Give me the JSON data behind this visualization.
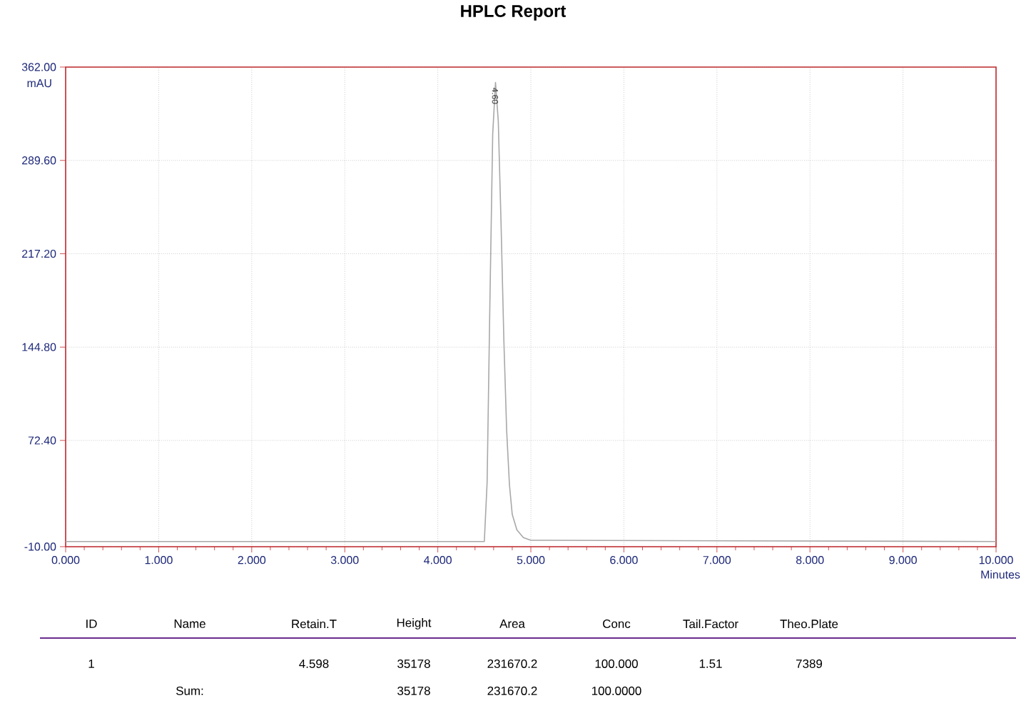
{
  "chart_data": {
    "type": "line",
    "title": "HPLC Report",
    "xlabel": "Minutes",
    "ylabel": "mAU",
    "x": [
      0,
      4.5,
      4.53,
      4.56,
      4.59,
      4.62,
      4.65,
      4.68,
      4.71,
      4.74,
      4.77,
      4.8,
      4.85,
      4.92,
      5.0,
      10
    ],
    "values": [
      -6,
      -6,
      40,
      180,
      310,
      350,
      320,
      240,
      150,
      80,
      38,
      15,
      3,
      -3,
      -5,
      -6
    ],
    "color": "#a8a8a8",
    "marker": "none",
    "line_style": "solid",
    "grid": true,
    "xlim": [
      0,
      10
    ],
    "ylim": [
      -10,
      362
    ],
    "xticks": [
      {
        "value": 0,
        "label": "0.000"
      },
      {
        "value": 1,
        "label": "1.000"
      },
      {
        "value": 2,
        "label": "2.000"
      },
      {
        "value": 3,
        "label": "3.000"
      },
      {
        "value": 4,
        "label": "4.000"
      },
      {
        "value": 5,
        "label": "5.000"
      },
      {
        "value": 6,
        "label": "6.000"
      },
      {
        "value": 7,
        "label": "7.000"
      },
      {
        "value": 8,
        "label": "8.000"
      },
      {
        "value": 9,
        "label": "9.000"
      },
      {
        "value": 10,
        "label": "10.000"
      }
    ],
    "yticks": [
      {
        "value": -10,
        "label": "-10.00"
      },
      {
        "value": 72.4,
        "label": "72.40"
      },
      {
        "value": 144.8,
        "label": "144.80"
      },
      {
        "value": 217.2,
        "label": "217.20"
      },
      {
        "value": 289.6,
        "label": "289.60"
      },
      {
        "value": 362,
        "label": "362.00"
      }
    ],
    "annotations": [
      {
        "text": "4.60",
        "x": 4.6,
        "y": 350
      },
      "ID",
      "Name",
      "Retain.T",
      "Height",
      "Area",
      "Conc",
      "Tail.Factor",
      "Theo.Plate",
      "1",
      "4.598",
      "35178",
      "231670.2",
      "100.000",
      "1.51",
      "7389",
      "Sum:",
      "35178",
      "231670.2",
      "100.0000"
    ]
  }
}
